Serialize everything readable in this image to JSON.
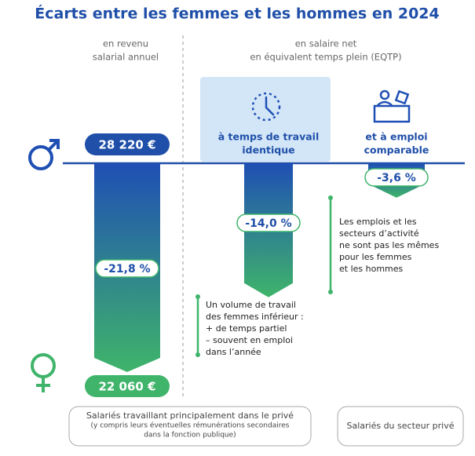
{
  "title": "Écarts entre les femmes et les hommes en 2024",
  "column_headers": [
    [
      "en revenu",
      "salarial annuel"
    ],
    [
      "en salaire net",
      "en équivalent temps plein (EQTP)"
    ]
  ],
  "men_amount": "28 220 €",
  "women_amount": "22 060 €",
  "gaps": [
    {
      "heading": null,
      "value": -21.8,
      "value_label": "-21,8 %"
    },
    {
      "heading": [
        "à temps de travail",
        "identique"
      ],
      "value": -14.0,
      "value_label": "-14,0 %"
    },
    {
      "heading": [
        "et à emploi",
        "comparable"
      ],
      "value": -3.6,
      "value_label": "-3,6 %"
    }
  ],
  "notes": [
    [
      "Un volume de travail",
      "des femmes inférieur :",
      "+ de temps partiel",
      "– souvent en emploi",
      "dans l’année"
    ],
    [
      "Les emplois et les",
      "secteurs d’activité",
      "ne sont pas les mêmes",
      "pour les femmes",
      "et les hommes"
    ]
  ],
  "footers": [
    [
      "Salariés travaillant principalement dans le privé",
      "(y compris leurs éventuelles rémunérations secondaires",
      "dans la fonction publique)"
    ],
    [
      "Salariés du secteur privé"
    ]
  ]
}
